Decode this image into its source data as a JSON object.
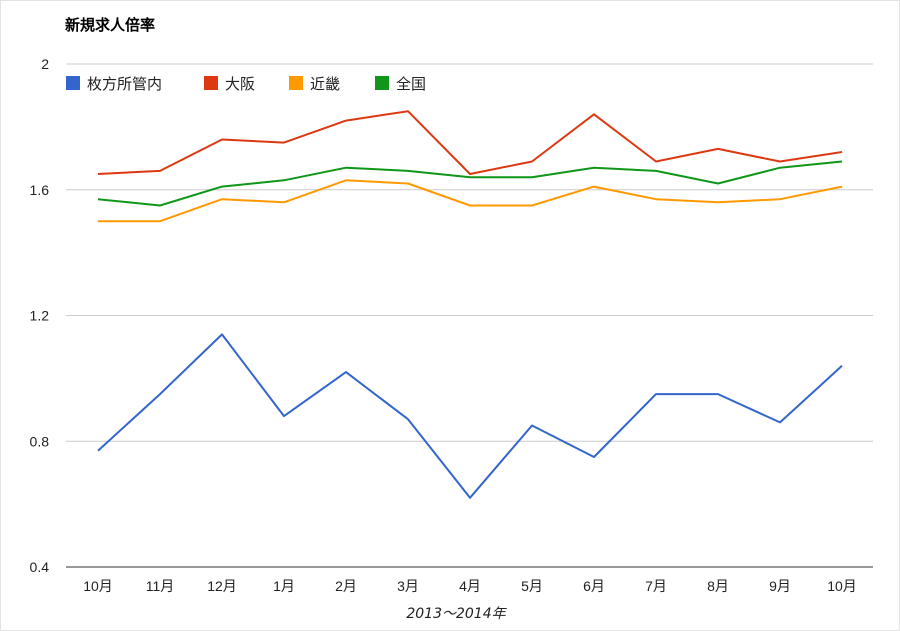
{
  "chart_data": {
    "type": "line",
    "title": "新規求人倍率",
    "xlabel": "2013〜2014年",
    "ylabel": "",
    "categories": [
      "10月",
      "11月",
      "12月",
      "1月",
      "2月",
      "3月",
      "4月",
      "5月",
      "6月",
      "7月",
      "8月",
      "9月",
      "10月"
    ],
    "y_ticks": [
      "2",
      "1.6",
      "1.2",
      "0.8",
      "0.4"
    ],
    "ylim": [
      0.4,
      2.0
    ],
    "grid": true,
    "legend_position": "top-left",
    "series": [
      {
        "name": "枚方所管内",
        "color": "#3366cc",
        "values": [
          0.77,
          0.95,
          1.14,
          0.88,
          1.02,
          0.87,
          0.62,
          0.85,
          0.75,
          0.95,
          0.95,
          0.86,
          1.04
        ]
      },
      {
        "name": "大阪",
        "color": "#dc3912",
        "values": [
          1.65,
          1.66,
          1.76,
          1.75,
          1.82,
          1.85,
          1.65,
          1.69,
          1.84,
          1.69,
          1.73,
          1.69,
          1.72
        ]
      },
      {
        "name": "近畿",
        "color": "#ff9900",
        "values": [
          1.5,
          1.5,
          1.57,
          1.56,
          1.63,
          1.62,
          1.55,
          1.55,
          1.61,
          1.57,
          1.56,
          1.57,
          1.61
        ]
      },
      {
        "name": "全国",
        "color": "#109618",
        "values": [
          1.57,
          1.55,
          1.61,
          1.63,
          1.67,
          1.66,
          1.64,
          1.64,
          1.67,
          1.66,
          1.62,
          1.67,
          1.69
        ]
      }
    ]
  }
}
